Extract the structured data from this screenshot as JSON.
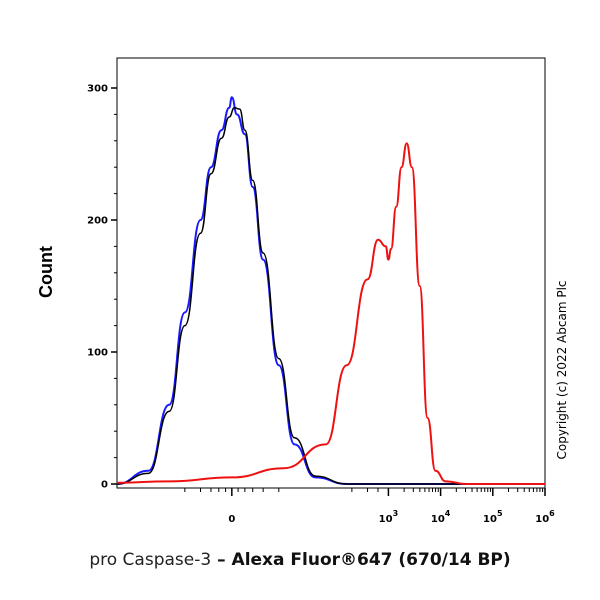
{
  "chart_data": {
    "type": "line",
    "title": "",
    "ylabel": "Count",
    "xlabel": {
      "marker": "pro Caspase-3",
      "separator": " – ",
      "fluor": "Alexa Fluor®647 (670/14 BP)"
    },
    "ylim": [
      0,
      300
    ],
    "y_ticks": [
      "0",
      "100",
      "200",
      "300"
    ],
    "x_scale": "biexponential",
    "x_ticks": [
      {
        "base": "0",
        "exp": ""
      },
      {
        "base": "10",
        "exp": "3"
      },
      {
        "base": "10",
        "exp": "4"
      },
      {
        "base": "10",
        "exp": "5"
      },
      {
        "base": "10",
        "exp": "6"
      }
    ],
    "grid": false,
    "copyright": "Copyright (c) 2022 Abcam Plc",
    "series": [
      {
        "color": "#1a1aff",
        "x": [
          -2.2,
          -1.6,
          -1.2,
          -0.9,
          -0.6,
          -0.4,
          -0.2,
          -0.05,
          0.0,
          0.1,
          0.25,
          0.4,
          0.6,
          0.9,
          1.2,
          1.6,
          2.2,
          3.0,
          4.0,
          5.0,
          6.0
        ],
        "y": [
          0,
          10,
          60,
          130,
          200,
          240,
          268,
          285,
          293,
          280,
          265,
          225,
          170,
          90,
          30,
          5,
          0,
          0,
          0,
          0,
          0
        ]
      },
      {
        "color": "#000000",
        "x": [
          -2.2,
          -1.6,
          -1.2,
          -0.9,
          -0.6,
          -0.4,
          -0.2,
          -0.05,
          0.05,
          0.15,
          0.25,
          0.4,
          0.6,
          0.9,
          1.2,
          1.6,
          2.2,
          3.0,
          4.0,
          5.0,
          6.0
        ],
        "y": [
          0,
          8,
          55,
          120,
          190,
          235,
          262,
          278,
          285,
          284,
          268,
          230,
          175,
          95,
          35,
          6,
          0,
          0,
          0,
          0,
          0
        ]
      },
      {
        "color": "#ee1111",
        "x": [
          -2.2,
          -1.2,
          0.0,
          1.0,
          1.8,
          2.2,
          2.6,
          2.8,
          2.95,
          3.0,
          3.05,
          3.15,
          3.25,
          3.35,
          3.45,
          3.6,
          3.75,
          3.9,
          4.1,
          4.5,
          5.0,
          6.0
        ],
        "y": [
          1,
          2,
          5,
          12,
          30,
          90,
          155,
          185,
          180,
          170,
          178,
          210,
          240,
          258,
          240,
          150,
          50,
          10,
          2,
          0,
          0,
          0
        ]
      }
    ]
  }
}
